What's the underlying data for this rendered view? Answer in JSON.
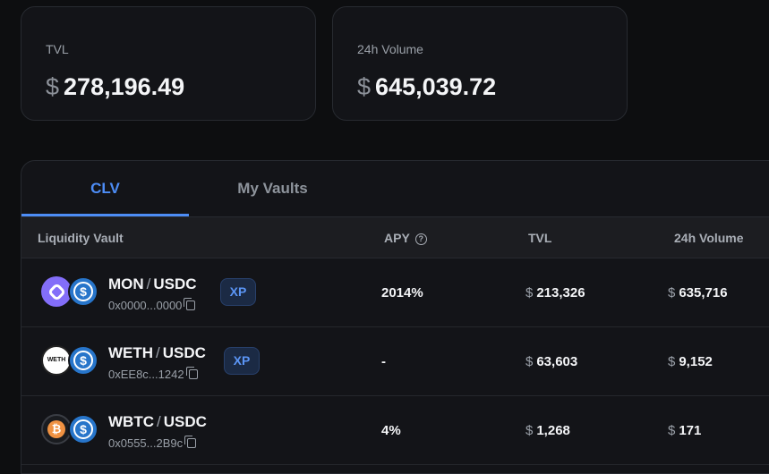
{
  "stats": {
    "tvl": {
      "label": "TVL",
      "currency": "$",
      "value": "278,196.49"
    },
    "volume": {
      "label": "24h Volume",
      "currency": "$",
      "value": "645,039.72"
    }
  },
  "tabs": [
    {
      "label": "CLV",
      "active": true
    },
    {
      "label": "My Vaults",
      "active": false
    }
  ],
  "table": {
    "columns": {
      "vault": "Liquidity Vault",
      "apy": "APY",
      "tvl": "TVL",
      "volume": "24h Volume"
    },
    "rows": [
      {
        "base": "MON",
        "quote": "USDC",
        "sep": "/",
        "address": "0x0000...0000",
        "badge": "XP",
        "apy": "2014%",
        "tvl_cur": "$",
        "tvl": "213,326",
        "vol_cur": "$",
        "volume": "635,716",
        "base_icon": "mon-token-icon"
      },
      {
        "base": "WETH",
        "quote": "USDC",
        "sep": "/",
        "address": "0xEE8c...1242",
        "badge": "XP",
        "apy": "-",
        "tvl_cur": "$",
        "tvl": "63,603",
        "vol_cur": "$",
        "volume": "9,152",
        "base_icon": "weth-token-icon",
        "base_icon_text": "WETH"
      },
      {
        "base": "WBTC",
        "quote": "USDC",
        "sep": "/",
        "address": "0x0555...2B9c",
        "badge": "",
        "apy": "4%",
        "tvl_cur": "$",
        "tvl": "1,268",
        "vol_cur": "$",
        "volume": "171",
        "base_icon": "wbtc-token-icon",
        "base_icon_text": "₿"
      }
    ]
  },
  "colors": {
    "accent": "#4d8df6",
    "background": "#0d0e10",
    "card": "#131418",
    "xp_badge": "#5b95f5"
  }
}
